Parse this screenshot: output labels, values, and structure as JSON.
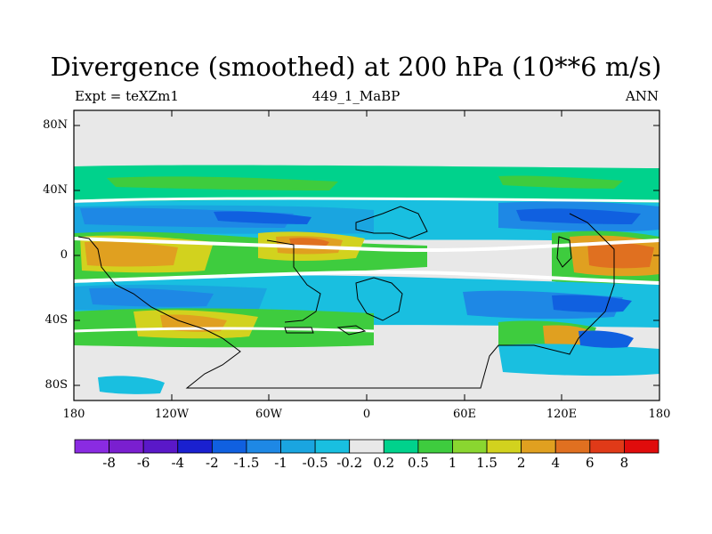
{
  "title": "Divergence (smoothed) at 200 hPa (10**6 m/s)",
  "subtitle_left": "Expt = teXZm1",
  "subtitle_center": "449_1_MaBP",
  "subtitle_right": "ANN",
  "lat_labels": [
    "80N",
    "40N",
    "0",
    "40S",
    "80S"
  ],
  "lon_labels": [
    "180",
    "120W",
    "60W",
    "0",
    "60E",
    "120E",
    "180"
  ],
  "colorbar": {
    "colors": [
      "#8a2be2",
      "#7a1fd0",
      "#5a18c8",
      "#1a20d0",
      "#1060e0",
      "#1e88e5",
      "#1aa5e0",
      "#19bfe0",
      "#e8e8e8",
      "#00d28c",
      "#3ecc3e",
      "#8ad630",
      "#d2d21e",
      "#e0a020",
      "#e07020",
      "#e03a18",
      "#e00c0c"
    ],
    "labels": [
      "-8",
      "-6",
      "-4",
      "-2",
      "-1.5",
      "-1",
      "-0.5",
      "-0.2",
      "0.2",
      "0.5",
      "1",
      "1.5",
      "2",
      "4",
      "6",
      "8"
    ]
  }
}
